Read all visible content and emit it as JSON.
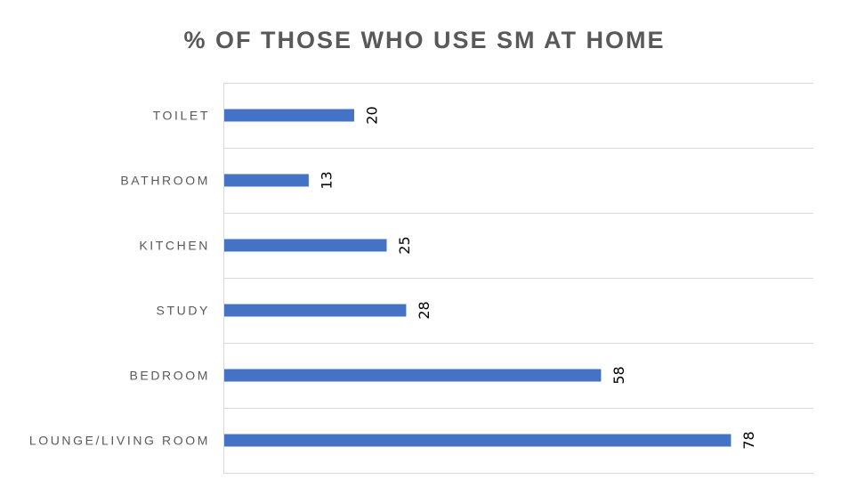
{
  "chart_data": {
    "type": "bar",
    "orientation": "horizontal",
    "title": "% OF THOSE WHO USE SM AT HOME",
    "xlabel": "",
    "ylabel": "",
    "categories": [
      "TOILET",
      "BATHROOM",
      "KITCHEN",
      "STUDY",
      "BEDROOM",
      "LOUNGE/LIVING ROOM"
    ],
    "values": [
      20,
      13,
      25,
      28,
      58,
      78
    ],
    "xlim": [
      0,
      90
    ],
    "data_labels": true,
    "grid": true,
    "legend": "none",
    "bar_color": "#4472c4"
  }
}
